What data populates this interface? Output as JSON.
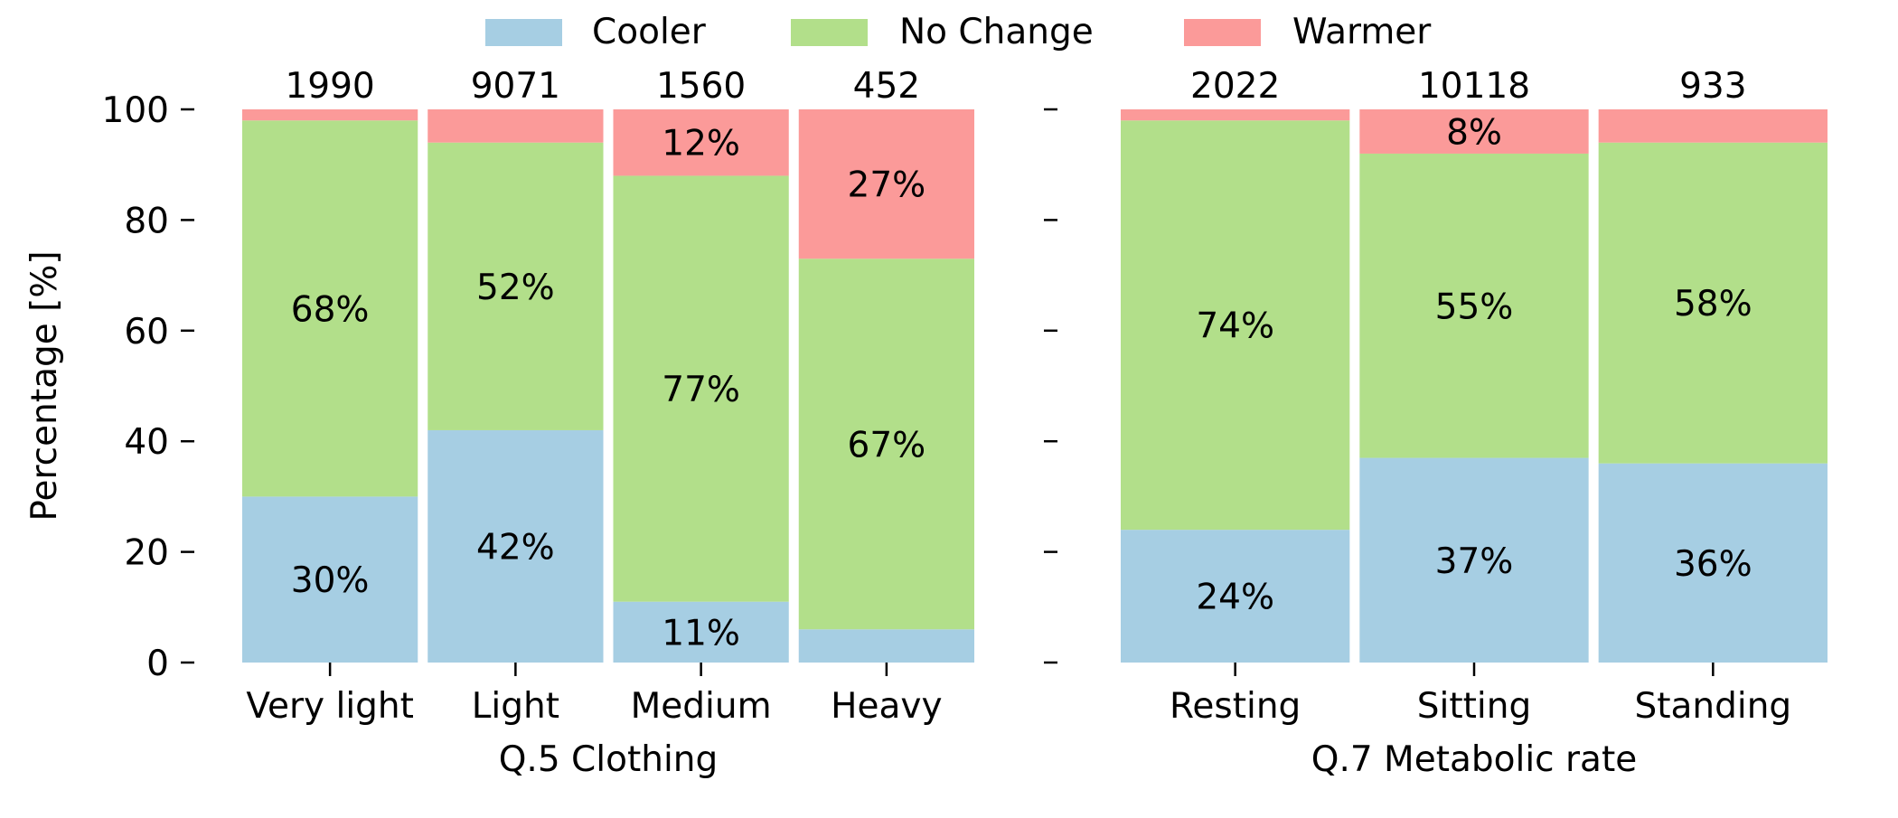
{
  "legend": {
    "placement": "top-center",
    "items": [
      {
        "label": "Cooler",
        "color": "#a6cee3"
      },
      {
        "label": "No Change",
        "color": "#b2df8a"
      },
      {
        "label": "Warmer",
        "color": "#fb9a99"
      }
    ]
  },
  "chart_data": [
    {
      "type": "bar",
      "stacked": true,
      "xlabel": "Q.5 Clothing",
      "ylabel": "Percentage [%]",
      "ylim": [
        0,
        100
      ],
      "yticks": [
        0,
        20,
        40,
        60,
        80,
        100
      ],
      "grid": false,
      "categories": [
        "Very light",
        "Light",
        "Medium",
        "Heavy"
      ],
      "counts": [
        "1990",
        "9071",
        "1560",
        "452"
      ],
      "series": [
        {
          "name": "Cooler",
          "values": [
            30,
            42,
            11,
            6
          ],
          "labels": [
            "30%",
            "42%",
            "11%",
            ""
          ]
        },
        {
          "name": "No Change",
          "values": [
            68,
            52,
            77,
            67
          ],
          "labels": [
            "68%",
            "52%",
            "77%",
            "67%"
          ]
        },
        {
          "name": "Warmer",
          "values": [
            2,
            6,
            12,
            27
          ],
          "labels": [
            "",
            "",
            "12%",
            "27%"
          ]
        }
      ]
    },
    {
      "type": "bar",
      "stacked": true,
      "xlabel": "Q.7 Metabolic rate",
      "ylabel": "",
      "ylim": [
        0,
        100
      ],
      "yticks": [
        0,
        20,
        40,
        60,
        80,
        100
      ],
      "grid": false,
      "categories": [
        "Resting",
        "Sitting",
        "Standing"
      ],
      "counts": [
        "2022",
        "10118",
        "933"
      ],
      "series": [
        {
          "name": "Cooler",
          "values": [
            24,
            37,
            36
          ],
          "labels": [
            "24%",
            "37%",
            "36%"
          ]
        },
        {
          "name": "No Change",
          "values": [
            74,
            55,
            58
          ],
          "labels": [
            "74%",
            "55%",
            "58%"
          ]
        },
        {
          "name": "Warmer",
          "values": [
            2,
            8,
            6
          ],
          "labels": [
            "",
            "8%",
            ""
          ]
        }
      ]
    }
  ]
}
